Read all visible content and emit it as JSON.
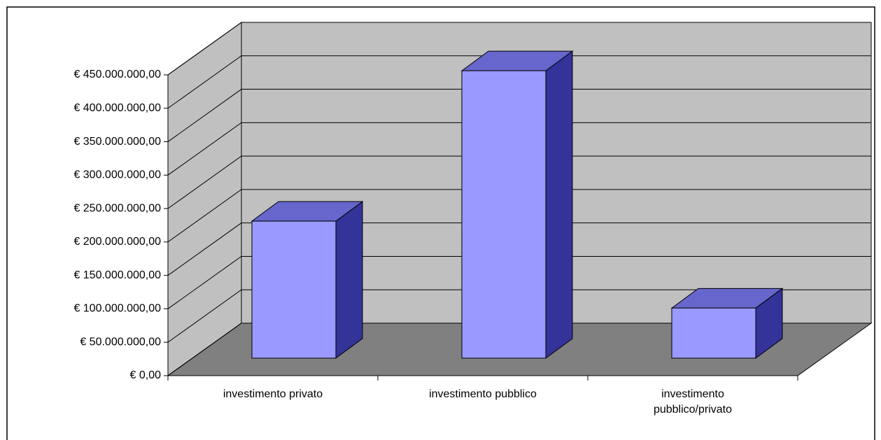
{
  "chart_data": {
    "type": "bar3d",
    "categories": [
      "investimento privato",
      "investimento pubblico",
      "investimento pubblico/privato"
    ],
    "values": [
      205000000,
      430000000,
      75000000
    ],
    "color": "#9999ff",
    "top_color": "#6666cc",
    "side_color": "#333399",
    "wall_color": "#c0c0c0",
    "floor_color": "#808080",
    "ylim": [
      0,
      450000000
    ],
    "yticks": [
      {
        "value": 0,
        "label": "€ 0,00"
      },
      {
        "value": 50000000,
        "label": "€ 50.000.000,00"
      },
      {
        "value": 100000000,
        "label": "€ 100.000.000,00"
      },
      {
        "value": 150000000,
        "label": "€ 150.000.000,00"
      },
      {
        "value": 200000000,
        "label": "€ 200.000.000,00"
      },
      {
        "value": 250000000,
        "label": "€ 250.000.000,00"
      },
      {
        "value": 300000000,
        "label": "€ 300.000.000,00"
      },
      {
        "value": 350000000,
        "label": "€ 350.000.000,00"
      },
      {
        "value": 400000000,
        "label": "€ 400.000.000,00"
      },
      {
        "value": 450000000,
        "label": "€ 450.000.000,00"
      }
    ],
    "grid": true
  }
}
